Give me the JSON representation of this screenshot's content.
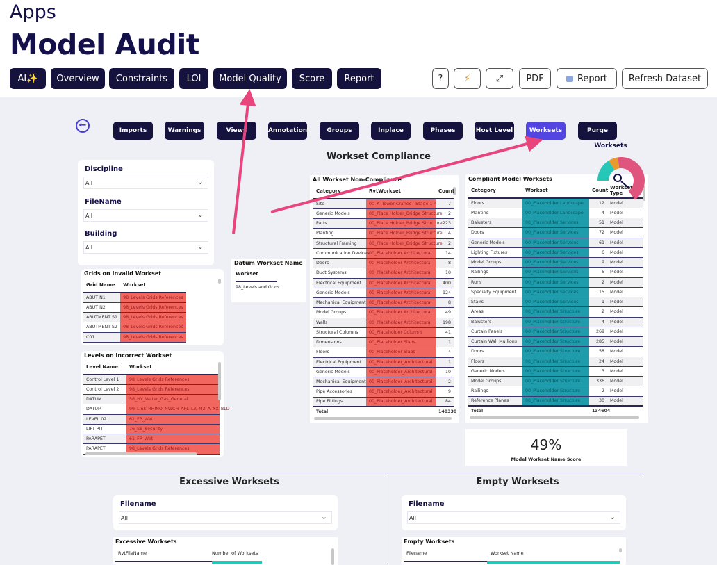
{
  "header": {
    "apps": "Apps",
    "title": "Model Audit"
  },
  "nav": [
    "AI✨",
    "Overview",
    "Constraints",
    "LOI",
    "Model Quality",
    "Score",
    "Report"
  ],
  "tools": {
    "help": "?",
    "flash": "⚡",
    "expand": "⤢",
    "pdf": "PDF",
    "report": "Report",
    "refresh": "Refresh Dataset"
  },
  "subnav": [
    "Imports",
    "Warnings",
    "Views",
    "Annotation",
    "Groups",
    "Inplace",
    "Phases",
    "Host Level",
    "Worksets",
    "Purge"
  ],
  "active_subnav": "Worksets",
  "colors": {
    "navy": "#15123d",
    "accent": "#5346e0",
    "noncompliant": "#f26660",
    "compliant": "#1e9cac",
    "arrow": "#e8457c"
  },
  "page_title": "Workset Compliance",
  "gauge": {
    "label": "Worksets",
    "segments": [
      {
        "color": "#27c7b8",
        "value": 25
      },
      {
        "color": "#e89a2c",
        "value": 10
      },
      {
        "color": "#e0557e",
        "value": 65
      }
    ]
  },
  "slicers": [
    {
      "label": "Discipline",
      "value": "All"
    },
    {
      "label": "FileName",
      "value": "All"
    },
    {
      "label": "Building",
      "value": "All"
    }
  ],
  "grids": {
    "title": "Grids on Invalid Workset",
    "headers": [
      "Grid Name",
      "Workset"
    ],
    "rows": [
      [
        "ABUT N1",
        "98_Levels Grids References"
      ],
      [
        "ABUT N2",
        "98_Levels Grids References"
      ],
      [
        "ABUTMENT S1",
        "98_Levels Grids References"
      ],
      [
        "ABUTMENT S2",
        "98_Levels Grids References"
      ],
      [
        "C01",
        "98_Levels Grids References"
      ]
    ]
  },
  "datum": {
    "title": "Datum Workset Name",
    "header": "Workset",
    "value": "98_Levels and Grids"
  },
  "levels": {
    "title": "Levels on Incorrect Workset",
    "headers": [
      "Level Name",
      "Workset"
    ],
    "rows": [
      [
        "Control Level 1",
        "98_Levels Grids References"
      ],
      [
        "Control Level 2",
        "98_Levels Grids References"
      ],
      [
        "DATUM",
        "56_HY_Water_Gas_General"
      ],
      [
        "DATUM",
        "99_Link_RHINO_NWCH_APL_LA_M3_A_XX_BLD"
      ],
      [
        "LEVEL 02",
        "61_FP_Wet"
      ],
      [
        "LIFT PIT",
        "76_SS_Security"
      ],
      [
        "PARAPET",
        "61_FP_Wet"
      ],
      [
        "PARAPET",
        "98_Levels Grids References"
      ]
    ]
  },
  "noncompliance": {
    "title": "All Workset Non-Compliance",
    "headers": [
      "Category",
      "RvtWorkset",
      "Count"
    ],
    "rows": [
      [
        "Site",
        "00_A_Tower Cranes - Stage 1-4",
        "7"
      ],
      [
        "Generic Models",
        "00_Place Holder_Bridge Structure",
        "2"
      ],
      [
        "Parts",
        "00_Place Holder_Bridge Structure",
        "223"
      ],
      [
        "Planting",
        "00_Place Holder_Bridge Structure",
        "4"
      ],
      [
        "Structural Framing",
        "00_Place Holder_Bridge Structure",
        "2"
      ],
      [
        "Communication Devices",
        "00_Placeholder Architectural",
        "14"
      ],
      [
        "Doors",
        "00_Placeholder Architectural",
        "8"
      ],
      [
        "Duct Systems",
        "00_Placeholder Architectural",
        "10"
      ],
      [
        "Electrical Equipment",
        "00_Placeholder Architectural",
        "400"
      ],
      [
        "Generic Models",
        "00_Placeholder Architectural",
        "124"
      ],
      [
        "Mechanical Equipment",
        "00_Placeholder Architectural",
        "8"
      ],
      [
        "Model Groups",
        "00_Placeholder Architectural",
        "49"
      ],
      [
        "Walls",
        "00_Placeholder Architectural",
        "198"
      ],
      [
        "Structural Columns",
        "00_Placeholder Columns",
        "41"
      ],
      [
        "Dimensions",
        "00_Placeholder Slabs",
        "1"
      ],
      [
        "Floors",
        "00_Placeholder Slabs",
        "4"
      ],
      [
        "Electrical Equipment",
        "00_Placeholder_Architectural",
        "1"
      ],
      [
        "Generic Models",
        "00_Placeholder_Architectural",
        "10"
      ],
      [
        "Mechanical Equipment",
        "00_Placeholder_Architectural",
        "2"
      ],
      [
        "Pipe Accessories",
        "00_Placeholder_Architectural",
        "9"
      ],
      [
        "Pipe Fittings",
        "00_Placeholder_Architectural",
        "84"
      ]
    ],
    "total_label": "Total",
    "total": "140330"
  },
  "compliant": {
    "title": "Compliant Model Worksets",
    "headers": [
      "Category",
      "Workset",
      "Count",
      "Workset Type"
    ],
    "rows": [
      [
        "Floors",
        "00_Placeholder Landscape",
        "12",
        "Model"
      ],
      [
        "Planting",
        "00_Placeholder Landscape",
        "4",
        "Model"
      ],
      [
        "Balusters",
        "00_Placeholder Services",
        "51",
        "Model"
      ],
      [
        "Doors",
        "00_Placeholder Services",
        "72",
        "Model"
      ],
      [
        "Generic Models",
        "00_Placeholder Services",
        "61",
        "Model"
      ],
      [
        "Lighting Fixtures",
        "00_Placeholder Services",
        "6",
        "Model"
      ],
      [
        "Model Groups",
        "00_Placeholder Services",
        "9",
        "Model"
      ],
      [
        "Railings",
        "00_Placeholder Services",
        "6",
        "Model"
      ],
      [
        "Runs",
        "00_Placeholder Services",
        "2",
        "Model"
      ],
      [
        "Specialty Equipment",
        "00_Placeholder Services",
        "15",
        "Model"
      ],
      [
        "Stairs",
        "00_Placeholder Services",
        "1",
        "Model"
      ],
      [
        "Areas",
        "00_Placeholder Structure",
        "2",
        "Model"
      ],
      [
        "Balusters",
        "00_Placeholder Structure",
        "4",
        "Model"
      ],
      [
        "Curtain Panels",
        "00_Placeholder Structure",
        "269",
        "Model"
      ],
      [
        "Curtain Wall Mullions",
        "00_Placeholder Structure",
        "285",
        "Model"
      ],
      [
        "Doors",
        "00_Placeholder Structure",
        "58",
        "Model"
      ],
      [
        "Floors",
        "00_Placeholder Structure",
        "24",
        "Model"
      ],
      [
        "Generic Models",
        "00_Placeholder Structure",
        "3",
        "Model"
      ],
      [
        "Model Groups",
        "00_Placeholder Structure",
        "336",
        "Model"
      ],
      [
        "Railings",
        "00_Placeholder Structure",
        "2",
        "Model"
      ],
      [
        "Reference Planes",
        "00_Placeholder Structure",
        "30",
        "Model"
      ]
    ],
    "total_label": "Total",
    "total": "134604"
  },
  "score": {
    "value": "49%",
    "label": "Model Workset Name Score"
  },
  "excessive": {
    "section": "Excessive Worksets",
    "slicer_label": "Filename",
    "slicer_value": "All",
    "table_title": "Excessive Worksets",
    "headers": [
      "RvtFileName",
      "Number of Worksets"
    ]
  },
  "empty": {
    "section": "Empty Worksets",
    "slicer_label": "Filename",
    "slicer_value": "All",
    "table_title": "Empty Worksets",
    "headers": [
      "Filename",
      "Workset Name"
    ]
  }
}
